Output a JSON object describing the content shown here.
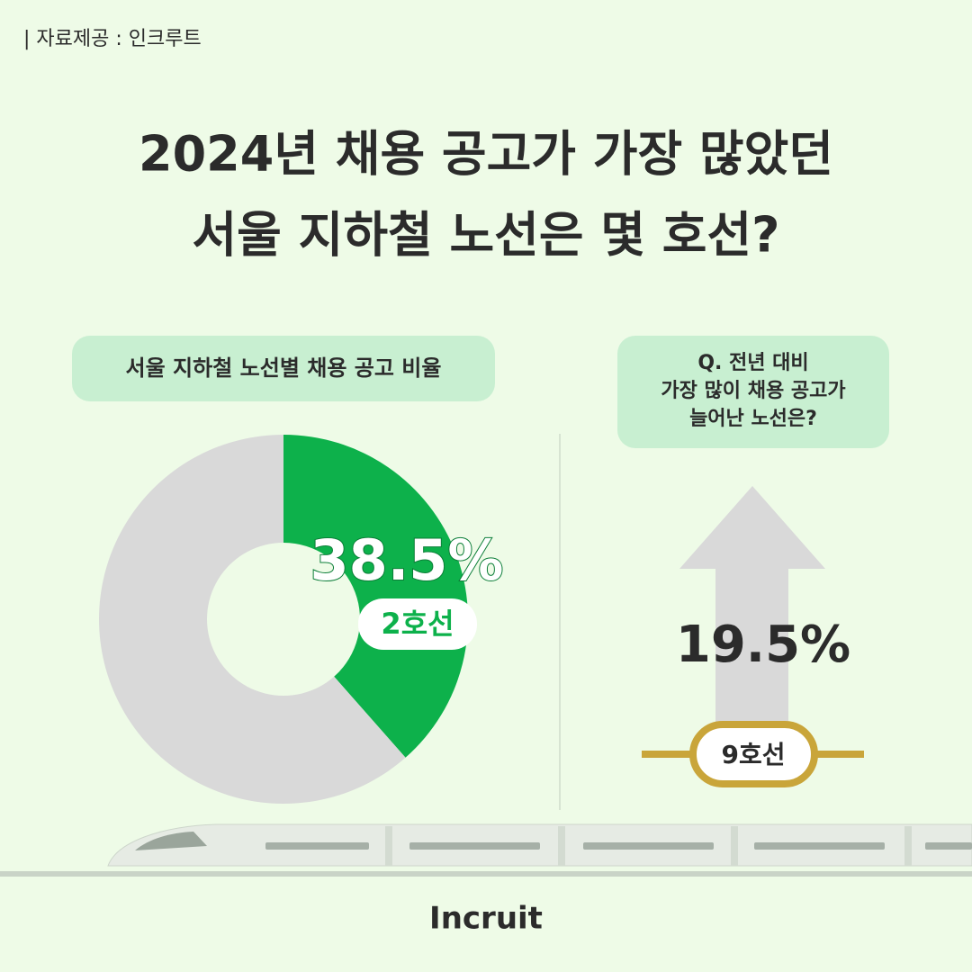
{
  "source": "| 자료제공 : 인크루트",
  "title": [
    "2024년 채용 공고가 가장 많았던",
    "서울 지하철 노선은 몇 호선?"
  ],
  "logo": "Incruit",
  "chart_data": [
    {
      "type": "pie",
      "title": "서울 지하철 노선별 채용 공고 비율",
      "categories": [
        "2호선",
        null
      ],
      "values": [
        38.5,
        61.5
      ],
      "value_labels": [
        "38.5%",
        null
      ],
      "colors": [
        "#0db14b",
        "#d9d9d9"
      ]
    },
    {
      "type": "arrow",
      "title": [
        "Q. 전년 대비",
        "가장 많이 채용 공고가",
        "늘어난 노선은?"
      ],
      "categories": [
        "9호선"
      ],
      "values": [
        19.5
      ],
      "value_labels": [
        "19.5%"
      ],
      "color": "#d9d9d9",
      "line_color": "#c9a53a"
    }
  ]
}
